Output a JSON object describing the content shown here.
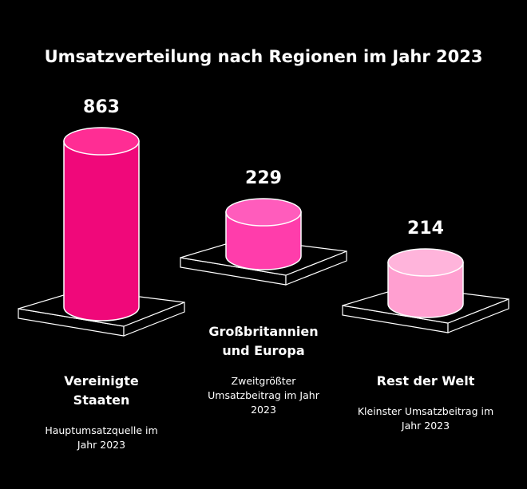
{
  "chart_data": {
    "type": "bar",
    "title": "Umsatzverteilung nach Regionen im Jahr 2023",
    "categories": [
      "Vereinigte Staaten",
      "Großbritannien und Europa",
      "Rest der Welt"
    ],
    "values": [
      863,
      229,
      214
    ],
    "descriptions": [
      "Hauptumsatzquelle im Jahr 2023",
      "Zweitgrößter Umsatzbeitrag im Jahr 2023",
      "Kleinster Umsatzbeitrag im Jahr 2023"
    ],
    "colors": [
      "#f0087a",
      "#ff3dab",
      "#ff9fd0"
    ],
    "colors_top": [
      "#ff2d94",
      "#ff5cbc",
      "#ffb4db"
    ]
  }
}
